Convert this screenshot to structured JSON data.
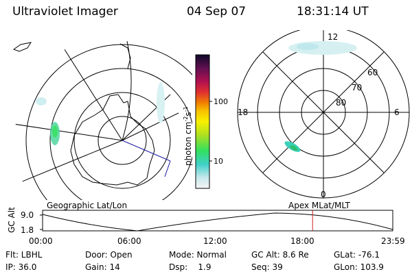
{
  "header": {
    "instrument": "Ultraviolet Imager",
    "date": "04 Sep 07",
    "time": "18:31:14 UT"
  },
  "colorbar": {
    "unit_label": "photon cm",
    "unit_sup1": "-2",
    "unit_mid": "s",
    "unit_sup2": "-1",
    "tick_100": "100",
    "tick_10": "10"
  },
  "polar_plot": {
    "lat_labels": [
      "60",
      "70",
      "80"
    ],
    "mlt_labels": {
      "top": "12",
      "left": "18",
      "right": "6",
      "bottom": "0"
    }
  },
  "projections": {
    "left": "Geographic Lat/Lon",
    "right": "Apex MLat/MLT"
  },
  "altitude_plot": {
    "ylabel": "GC Alt",
    "y_ticks": [
      "9.0",
      "1.8"
    ],
    "x_ticks": [
      "00:00",
      "06:00",
      "12:00",
      "18:00",
      "23:59"
    ],
    "current_time_fraction": 0.771
  },
  "status": {
    "filter": "Flt: LBHL",
    "ip": "IP: 36.0",
    "door": "Door: Open",
    "gain": "Gain: 14",
    "mode": "Mode: Normal",
    "dsp": "Dsp:    1.9",
    "gc_alt": "GC Alt: 8.6 Re",
    "seq": "Seq: 39",
    "glat": "GLat: -76.1",
    "glon": "GLon: 103.9"
  },
  "colors": {
    "magnetic_line": "#1a1aa0",
    "time_marker": "#cc2222",
    "aurora": "#7fd4d0"
  }
}
